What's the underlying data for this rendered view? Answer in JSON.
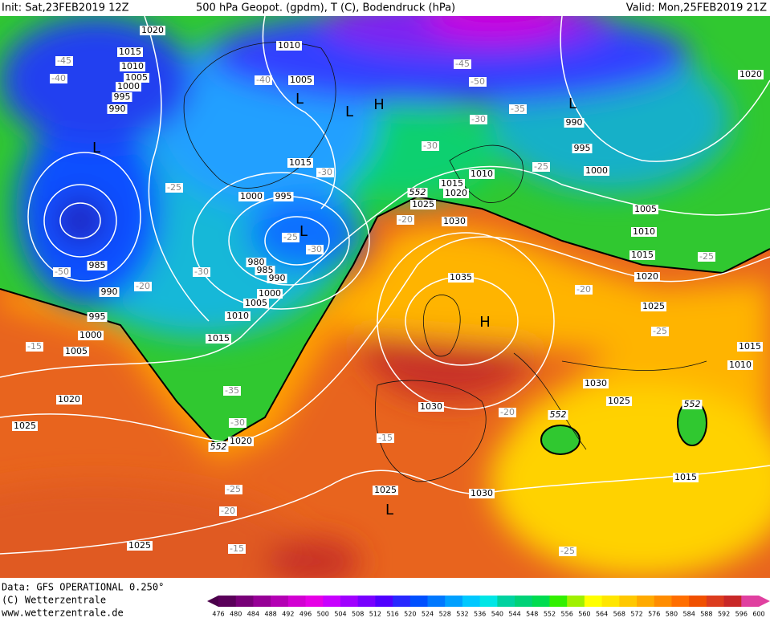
{
  "header": {
    "init": "Init: Sat,23FEB2019 12Z",
    "title": "500 hPa Geopot. (gpdm), T (C), Bodendruck (hPa)",
    "valid": "Valid: Mon,25FEB2019 21Z"
  },
  "footer": {
    "data": "Data: GFS OPERATIONAL 0.250°",
    "copyright": "(C) Wetterzentrale",
    "url": "www.wetterzentrale.de"
  },
  "scale": {
    "labels": [
      476,
      480,
      484,
      488,
      492,
      496,
      500,
      504,
      508,
      512,
      516,
      520,
      524,
      528,
      532,
      536,
      540,
      544,
      548,
      552,
      556,
      560,
      564,
      568,
      572,
      576,
      580,
      584,
      588,
      592,
      596,
      600
    ],
    "colors": [
      "#5a005a",
      "#780078",
      "#960096",
      "#b400b4",
      "#d200d2",
      "#e600e6",
      "#c800ff",
      "#a000ff",
      "#7800ff",
      "#5000ff",
      "#2828ff",
      "#0050ff",
      "#0078ff",
      "#00a0ff",
      "#00c8ff",
      "#00e6e6",
      "#00d2a0",
      "#00d278",
      "#00dc50",
      "#32f000",
      "#a0f000",
      "#ffff00",
      "#ffe600",
      "#ffc800",
      "#ffaa00",
      "#ff8c00",
      "#ff6e00",
      "#f05000",
      "#dc3c1e",
      "#c82828",
      "#e040a0"
    ]
  },
  "map": {
    "pressure_labels": [
      "1020",
      "1015",
      "1010",
      "1005",
      "1000",
      "995",
      "990",
      "1010",
      "1005",
      "1020",
      "990",
      "995",
      "1000",
      "1015",
      "1000",
      "995",
      "1010",
      "1015",
      "1020",
      "1025",
      "1030",
      "1005",
      "1010",
      "1015",
      "1020",
      "1025",
      "1035",
      "980",
      "985",
      "990",
      "1000",
      "1005",
      "1010",
      "1015",
      "985",
      "990",
      "995",
      "1000",
      "1005",
      "1020",
      "1025",
      "1020",
      "1030",
      "1030",
      "1025",
      "1015",
      "1010",
      "1015",
      "1025",
      "1030",
      "1025"
    ],
    "temp_labels": [
      "-45",
      "-40",
      "-40",
      "-45",
      "-50",
      "-35",
      "-30",
      "-30",
      "-25",
      "-25",
      "-30",
      "-20",
      "-25",
      "-30",
      "-30",
      "-50",
      "-20",
      "-20",
      "-25",
      "-25",
      "-15",
      "-35",
      "-30",
      "-20",
      "-15",
      "-25",
      "-20",
      "-15",
      "-25"
    ],
    "height_labels": [
      "552",
      "552",
      "552",
      "552"
    ],
    "centers": [
      "L",
      "L",
      "L",
      "H",
      "L",
      "L",
      "H",
      "L"
    ]
  }
}
